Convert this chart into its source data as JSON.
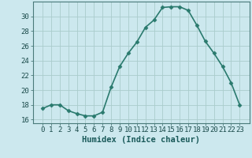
{
  "x": [
    0,
    1,
    2,
    3,
    4,
    5,
    6,
    7,
    8,
    9,
    10,
    11,
    12,
    13,
    14,
    15,
    16,
    17,
    18,
    19,
    20,
    21,
    22,
    23
  ],
  "y": [
    17.5,
    18.0,
    18.0,
    17.2,
    16.8,
    16.5,
    16.5,
    17.0,
    20.4,
    23.2,
    25.0,
    26.5,
    28.5,
    29.5,
    31.2,
    31.3,
    31.3,
    30.8,
    28.8,
    26.6,
    25.0,
    23.2,
    21.0,
    18.0
  ],
  "line_color": "#2a7a6e",
  "marker": "D",
  "marker_size": 2.5,
  "linewidth": 1.2,
  "xlabel": "Humidex (Indice chaleur)",
  "ylim": [
    15.5,
    32.0
  ],
  "yticks": [
    16,
    18,
    20,
    22,
    24,
    26,
    28,
    30
  ],
  "xticks": [
    0,
    1,
    2,
    3,
    4,
    5,
    6,
    7,
    8,
    9,
    10,
    11,
    12,
    13,
    14,
    15,
    16,
    17,
    18,
    19,
    20,
    21,
    22,
    23
  ],
  "bg_color": "#cce8ee",
  "grid_color": "#aacccc",
  "xlabel_fontsize": 7.5,
  "tick_fontsize": 6.5
}
